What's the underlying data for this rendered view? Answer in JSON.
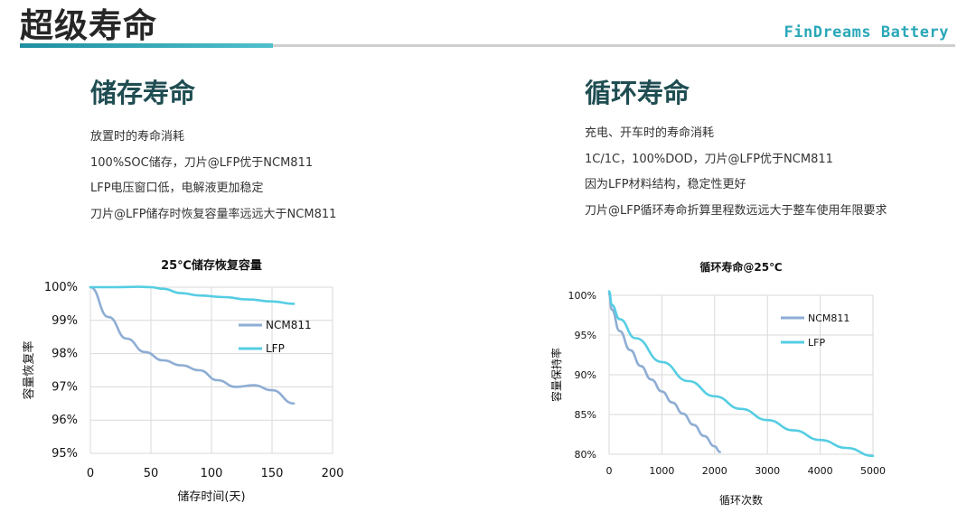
{
  "header": {
    "title": "超级寿命",
    "brand": "FinDreams Battery"
  },
  "left": {
    "title": "储存寿命",
    "bullets": [
      "放置时的寿命消耗",
      "100%SOC储存，刀片@LFP优于NCM811",
      "LFP电压窗口低，电解液更加稳定",
      "刀片@LFP储存时恢复容量率远远大于NCM811"
    ]
  },
  "right": {
    "title": "循环寿命",
    "bullets": [
      "充电、开车时的寿命消耗",
      "1C/1C，100%DOD，刀片@LFP优于NCM811",
      "因为LFP材料结构，稳定性更好",
      "刀片@LFP循环寿命折算里程数远远大于整车使用年限要求"
    ]
  },
  "colors": {
    "ncm811": "#8eadd4",
    "lfp": "#55cde3",
    "grid": "#d9d9d9"
  },
  "chart_data": [
    {
      "type": "line",
      "title": "25℃储存恢复容量",
      "xlabel": "储存时间(天)",
      "ylabel": "容量恢复率",
      "xlim": [
        0,
        200
      ],
      "ylim": [
        95,
        100
      ],
      "xticks": [
        0,
        50,
        100,
        150,
        200
      ],
      "yticks": [
        100,
        99,
        98,
        97,
        96,
        95
      ],
      "xtick_labels": [
        "0",
        "50",
        "100",
        "150",
        "200"
      ],
      "ytick_labels": [
        "100%",
        "99%",
        "98%",
        "97%",
        "96%",
        "95%"
      ],
      "grid": true,
      "legend": "right",
      "series": [
        {
          "name": "NCM811",
          "x": [
            0,
            15,
            30,
            45,
            60,
            75,
            90,
            105,
            120,
            135,
            150,
            168
          ],
          "y": [
            100,
            99.1,
            98.45,
            98.05,
            97.8,
            97.65,
            97.5,
            97.2,
            97.0,
            97.05,
            96.9,
            96.5
          ]
        },
        {
          "name": "LFP",
          "x": [
            0,
            20,
            40,
            50,
            60,
            75,
            90,
            110,
            130,
            150,
            168
          ],
          "y": [
            100,
            100,
            100.01,
            100.0,
            99.95,
            99.82,
            99.75,
            99.7,
            99.63,
            99.57,
            99.5
          ]
        }
      ]
    },
    {
      "type": "line",
      "title": "循环寿命@25℃",
      "xlabel": "循环次数",
      "ylabel": "容量保持率",
      "xlim": [
        0,
        5000
      ],
      "ylim": [
        80,
        100
      ],
      "xticks": [
        0,
        1000,
        2000,
        3000,
        4000,
        5000
      ],
      "yticks": [
        100,
        95,
        90,
        85,
        80
      ],
      "xtick_labels": [
        "0",
        "1000",
        "2000",
        "3000",
        "4000",
        "5000"
      ],
      "ytick_labels": [
        "100%",
        "95%",
        "90%",
        "85%",
        "80%"
      ],
      "grid": true,
      "legend": "right",
      "series": [
        {
          "name": "NCM811",
          "x": [
            0,
            50,
            200,
            400,
            600,
            800,
            1000,
            1200,
            1400,
            1600,
            1800,
            2000,
            2100
          ],
          "y": [
            100.2,
            98.2,
            95.5,
            93.1,
            91.1,
            89.4,
            87.9,
            86.5,
            85.1,
            83.7,
            82.3,
            81.0,
            80.3
          ]
        },
        {
          "name": "LFP",
          "x": [
            0,
            50,
            200,
            500,
            1000,
            1500,
            2000,
            2500,
            3000,
            3500,
            4000,
            4500,
            5000
          ],
          "y": [
            100.5,
            98.8,
            97.0,
            94.6,
            91.6,
            89.2,
            87.3,
            85.7,
            84.3,
            83.0,
            81.8,
            80.8,
            79.8
          ]
        }
      ]
    }
  ]
}
